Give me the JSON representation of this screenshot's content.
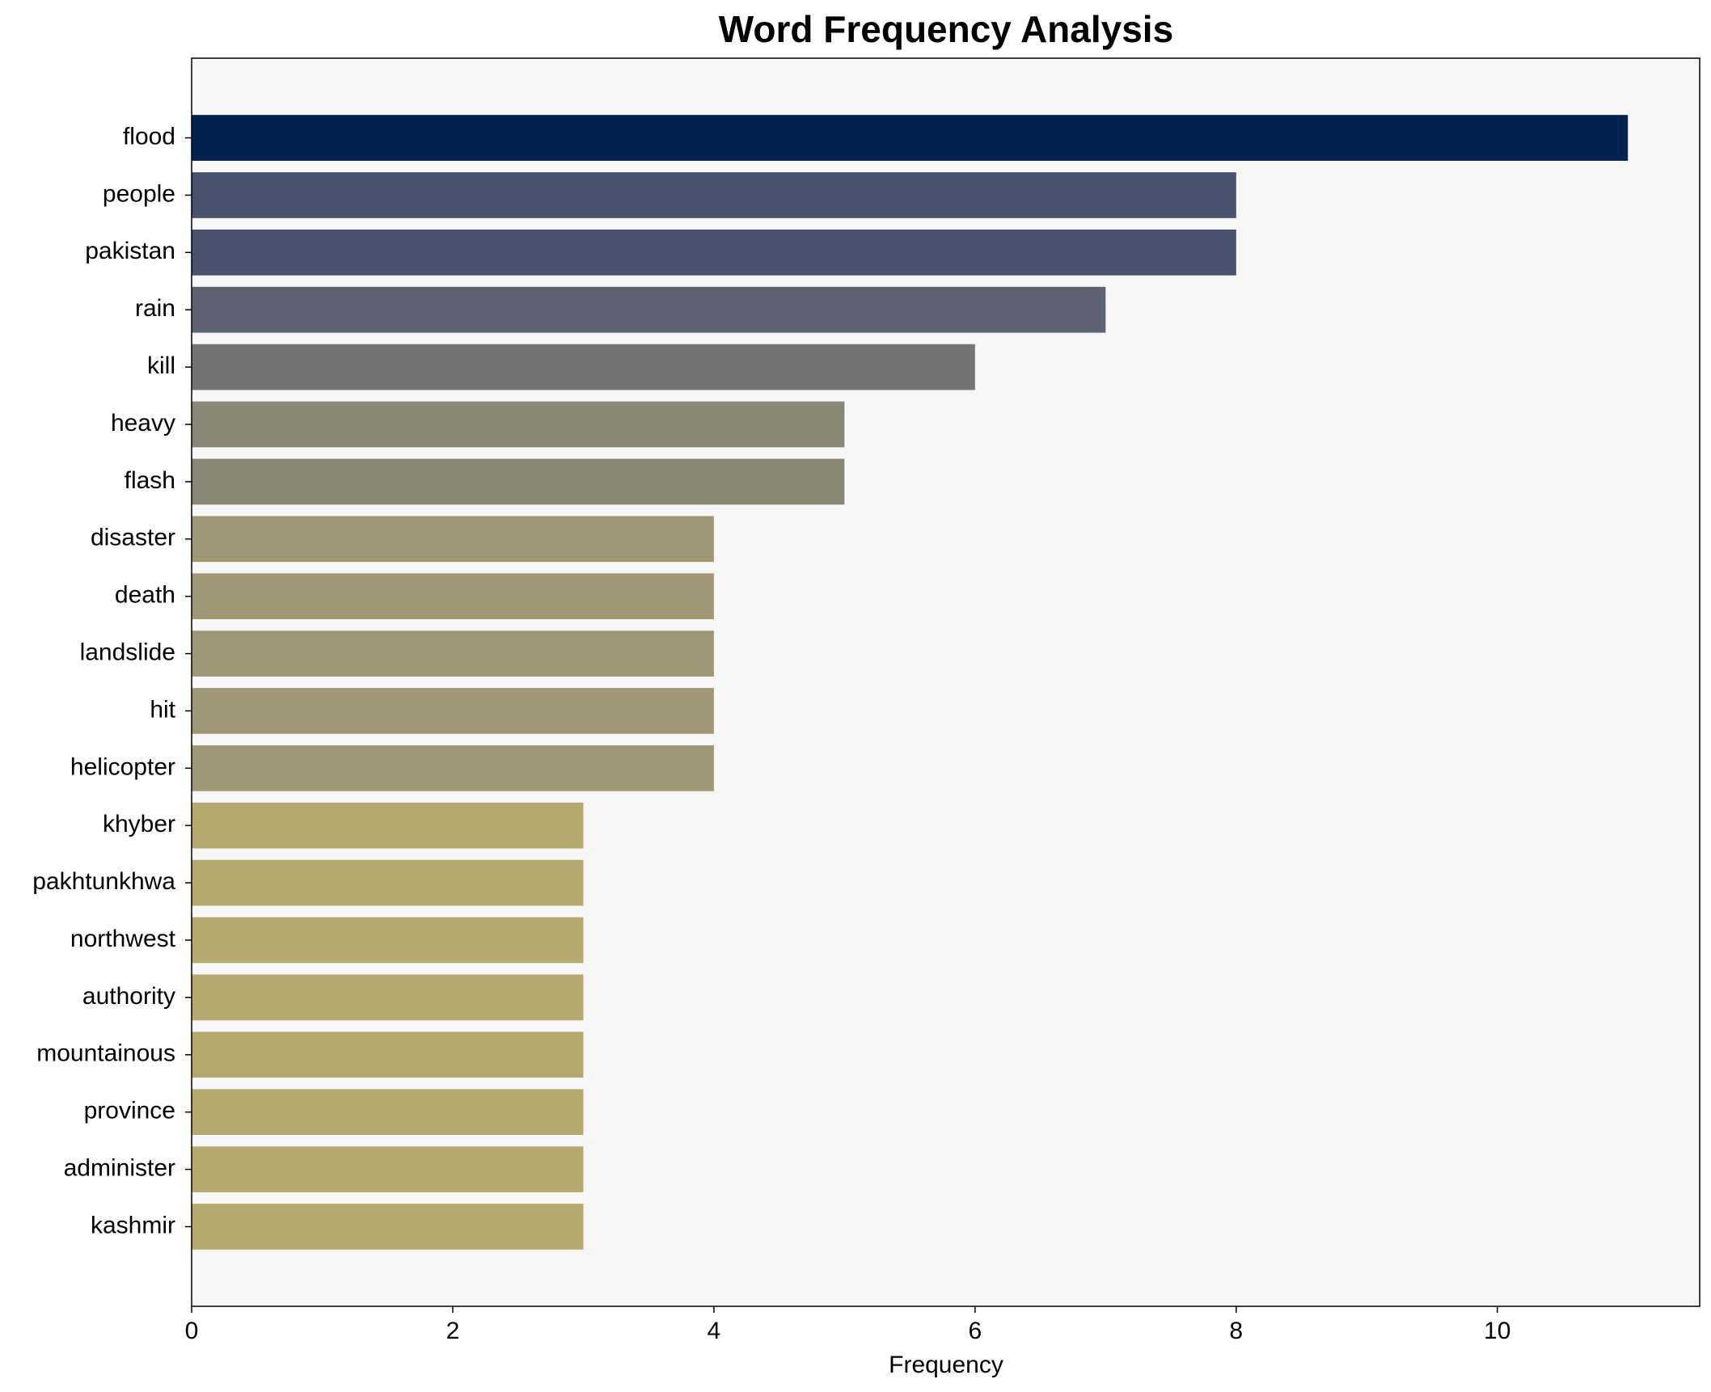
{
  "chart_data": {
    "type": "barh",
    "title": "Word Frequency Analysis",
    "x_label": "Frequency",
    "categories": [
      "flood",
      "people",
      "pakistan",
      "rain",
      "kill",
      "heavy",
      "flash",
      "disaster",
      "death",
      "landslide",
      "hit",
      "helicopter",
      "khyber",
      "pakhtunkhwa",
      "northwest",
      "authority",
      "mountainous",
      "province",
      "administer",
      "kashmir"
    ],
    "values": [
      11,
      8,
      8,
      7,
      6,
      5,
      5,
      4,
      4,
      4,
      4,
      4,
      3,
      3,
      3,
      3,
      3,
      3,
      3,
      3
    ],
    "colors": [
      "#00224e",
      "#48526e",
      "#48526e",
      "#5f6371",
      "#737373",
      "#898677",
      "#898677",
      "#a09775",
      "#a09775",
      "#a09775",
      "#a09775",
      "#a09775",
      "#b5a96f",
      "#b5a96f",
      "#b5a96f",
      "#b5a96f",
      "#b5a96f",
      "#b5a96f",
      "#b5a96f",
      "#b5a96f"
    ],
    "xlim": [
      0,
      11.55
    ],
    "xticks": [
      0,
      2,
      4,
      6,
      8,
      10
    ],
    "background": "#f7f7f7"
  }
}
